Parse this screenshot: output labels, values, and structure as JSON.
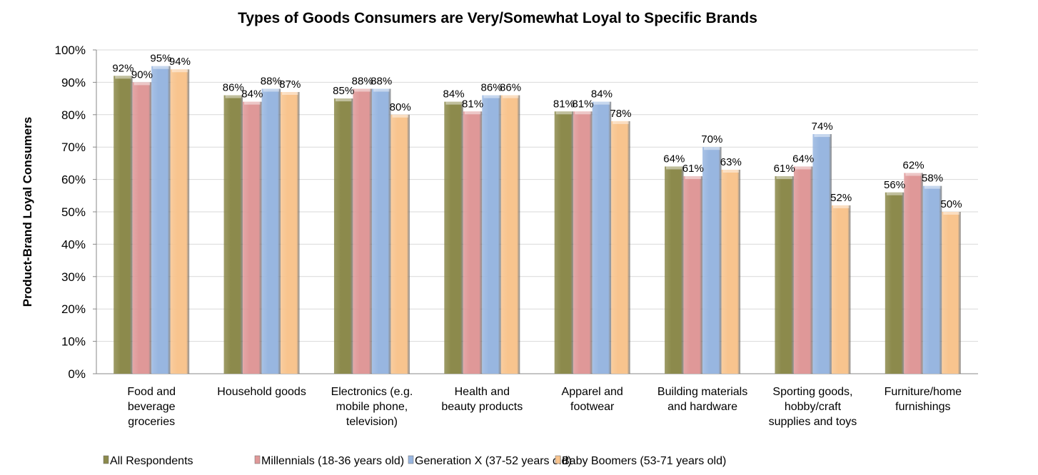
{
  "chart_data": {
    "type": "bar",
    "title": "Types of Goods Consumers are Very/Somewhat Loyal to Specific Brands",
    "xlabel": "",
    "ylabel": "Product-Brand  Loyal Consumers",
    "ylim": [
      0,
      100
    ],
    "yticks": [
      "0%",
      "10%",
      "20%",
      "30%",
      "40%",
      "50%",
      "60%",
      "70%",
      "80%",
      "90%",
      "100%"
    ],
    "grid": true,
    "legend_position": "bottom",
    "categories": [
      [
        "Food and",
        "beverage",
        "groceries"
      ],
      [
        "Household goods"
      ],
      [
        "Electronics (e.g.",
        "mobile phone,",
        "television)"
      ],
      [
        "Health and",
        "beauty products"
      ],
      [
        "Apparel and",
        "footwear"
      ],
      [
        "Building materials",
        "and hardware"
      ],
      [
        "Sporting goods,",
        "hobby/craft",
        "supplies and toys"
      ],
      [
        "Furniture/home",
        "furnishings"
      ]
    ],
    "series": [
      {
        "name": "All Respondents",
        "color": "#8c8a4c",
        "values": [
          92,
          86,
          85,
          84,
          81,
          64,
          61,
          56
        ]
      },
      {
        "name": "Millennials (18-36 years old)",
        "color": "#df9898",
        "values": [
          90,
          84,
          88,
          81,
          81,
          61,
          64,
          62
        ]
      },
      {
        "name": "Generation X (37-52 years old)",
        "color": "#98b6e0",
        "values": [
          95,
          88,
          88,
          86,
          84,
          70,
          74,
          58
        ]
      },
      {
        "name": "Baby Boomers (53-71 years old)",
        "color": "#f8c48e",
        "values": [
          94,
          87,
          80,
          86,
          78,
          63,
          52,
          50
        ]
      }
    ]
  }
}
